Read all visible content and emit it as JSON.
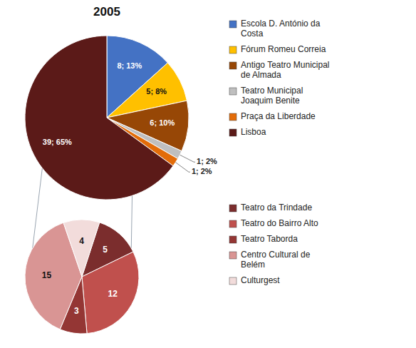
{
  "chart_data": [
    {
      "type": "pie",
      "title": "2005",
      "categories": [
        "Escola D. António da\nCosta",
        "Fórum Romeu Correia",
        "Antigo Teatro Municipal\nde Almada",
        "Teatro Municipal\nJoaquim Benite",
        "Praça da Liberdade",
        "Lisboa"
      ],
      "values": [
        8,
        5,
        6,
        1,
        1,
        39
      ],
      "value_labels": [
        "8; 13%",
        "5; 8%",
        "6; 10%",
        "1; 2%",
        "1; 2%",
        "39; 65%"
      ],
      "colors": [
        "#4472C4",
        "#FFC000",
        "#974706",
        "#BFBFBF",
        "#E36C09",
        "#5B1A18"
      ],
      "legend": "right",
      "data_labels": true
    },
    {
      "type": "pie",
      "categories": [
        "Teatro da Trindade",
        "Teatro do Bairro Alto",
        "Teatro Taborda",
        "Centro Cultural de\nBelém",
        "Culturgest"
      ],
      "values": [
        5,
        12,
        3,
        15,
        4
      ],
      "colors": [
        "#7B2D2D",
        "#C0504D",
        "#943634",
        "#D99594",
        "#F2DCDB"
      ],
      "legend": "right",
      "data_labels": true
    }
  ]
}
